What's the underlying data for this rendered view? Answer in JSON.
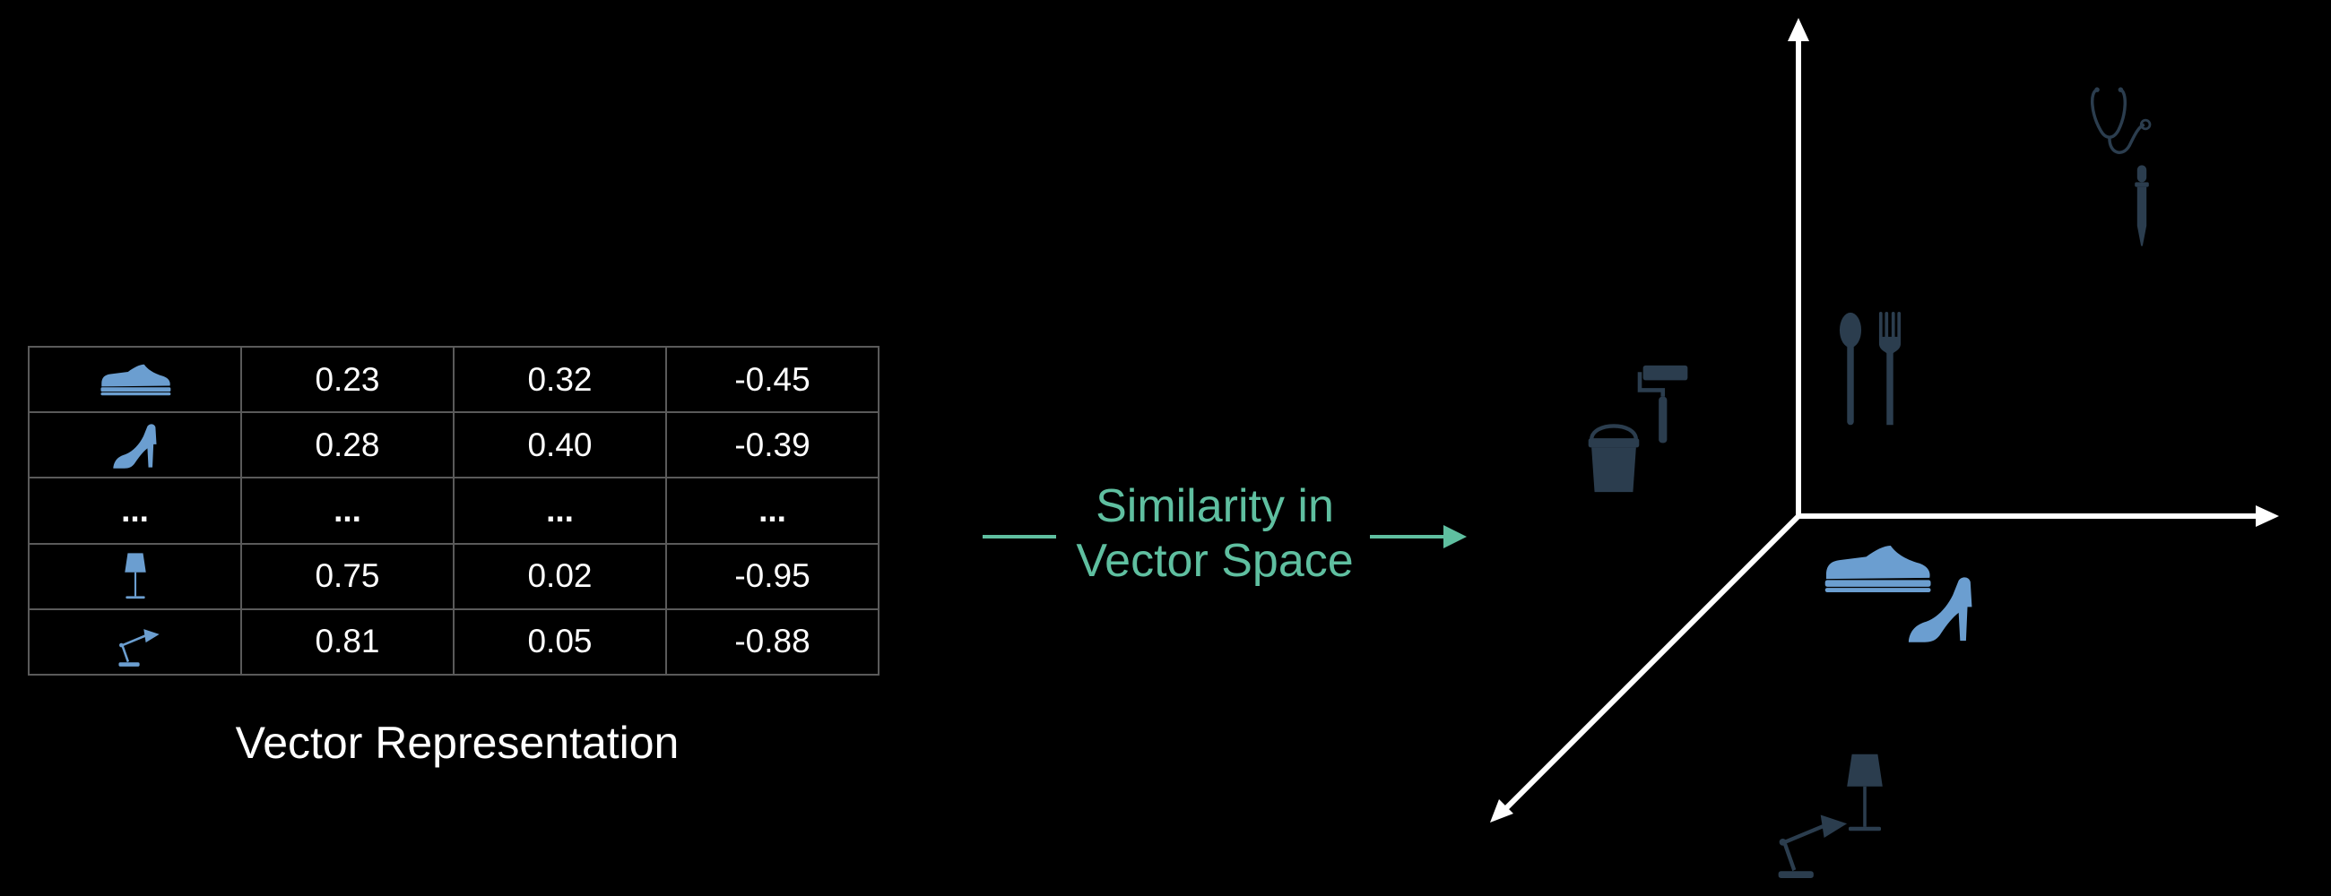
{
  "table": {
    "rows": [
      {
        "icon": "sneaker-icon",
        "values": [
          "0.23",
          "0.32",
          "-0.45"
        ]
      },
      {
        "icon": "high-heel-icon",
        "values": [
          "0.28",
          "0.40",
          "-0.39"
        ]
      },
      {
        "icon": "ellipsis",
        "values": [
          "...",
          "...",
          "..."
        ]
      },
      {
        "icon": "table-lamp-icon",
        "values": [
          "0.75",
          "0.02",
          "-0.95"
        ]
      },
      {
        "icon": "desk-lamp-icon",
        "values": [
          "0.81",
          "0.05",
          "-0.88"
        ]
      }
    ],
    "ellipsis_label": "...",
    "caption": "Vector Representation"
  },
  "middle": {
    "label_line1": "Similarity in",
    "label_line2": "Vector Space"
  },
  "space": {
    "items": [
      "stethoscope-icon",
      "dropper-icon",
      "spoon-icon",
      "fork-icon",
      "paint-roller-icon",
      "paint-bucket-icon",
      "sneaker-icon",
      "high-heel-icon",
      "table-lamp-icon",
      "desk-lamp-icon"
    ]
  },
  "colors": {
    "background": "#000000",
    "accent": "#5fbfa0",
    "highlight_icon": "#6b9ed0",
    "muted_icon": "#2b3d4e",
    "axis": "#ffffff",
    "grid": "#5a5a5a"
  }
}
